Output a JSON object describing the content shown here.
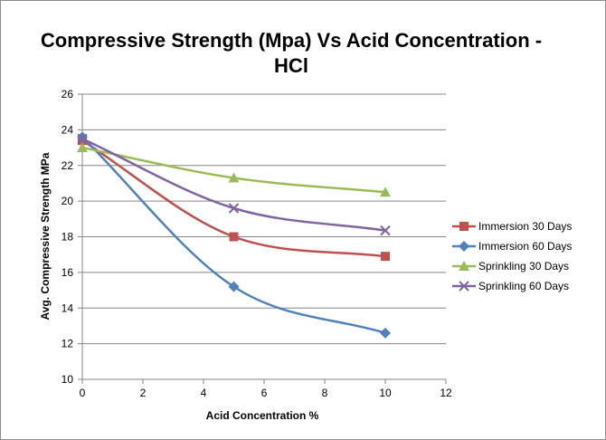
{
  "chart_data": {
    "type": "line",
    "title_lines": [
      "Compressive Strength (Mpa) Vs Acid Concentration -",
      "HCl"
    ],
    "xlabel": "Acid Concentration %",
    "ylabel": "Avg. Compressive Strength MPa",
    "xlim": [
      0,
      12
    ],
    "ylim": [
      10,
      26
    ],
    "xticks": [
      "0",
      "2",
      "4",
      "6",
      "8",
      "10",
      "12"
    ],
    "yticks": [
      "10",
      "12",
      "14",
      "16",
      "18",
      "20",
      "22",
      "24",
      "26"
    ],
    "x": [
      0,
      5,
      10
    ],
    "smooth": true,
    "grid": "horizontal",
    "legend_position": "right",
    "series": [
      {
        "name": "Immersion 30 Days",
        "values": [
          23.4,
          18.0,
          16.9
        ],
        "color": "#c0504d",
        "marker": "square"
      },
      {
        "name": "Immersion 60 Days",
        "values": [
          23.6,
          15.2,
          12.6
        ],
        "color": "#4f81bd",
        "marker": "diamond"
      },
      {
        "name": "Sprinkling 30 Days",
        "values": [
          23.0,
          21.3,
          20.5
        ],
        "color": "#9bbb59",
        "marker": "triangle"
      },
      {
        "name": "Sprinkling 60 Days",
        "values": [
          23.5,
          19.6,
          18.35
        ],
        "color": "#8064a2",
        "marker": "x"
      }
    ],
    "colors": {
      "gridline": "#868686",
      "axis": "#868686",
      "frame": "#8c8c8c"
    }
  }
}
